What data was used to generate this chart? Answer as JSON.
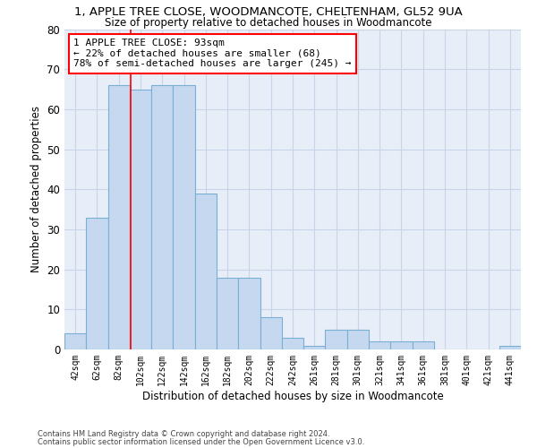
{
  "title1": "1, APPLE TREE CLOSE, WOODMANCOTE, CHELTENHAM, GL52 9UA",
  "title2": "Size of property relative to detached houses in Woodmancote",
  "xlabel": "Distribution of detached houses by size in Woodmancote",
  "ylabel": "Number of detached properties",
  "bins": [
    "42sqm",
    "62sqm",
    "82sqm",
    "102sqm",
    "122sqm",
    "142sqm",
    "162sqm",
    "182sqm",
    "202sqm",
    "222sqm",
    "242sqm",
    "261sqm",
    "281sqm",
    "301sqm",
    "321sqm",
    "341sqm",
    "361sqm",
    "381sqm",
    "401sqm",
    "421sqm",
    "441sqm"
  ],
  "values": [
    4,
    33,
    66,
    65,
    66,
    66,
    39,
    18,
    18,
    8,
    3,
    1,
    5,
    5,
    2,
    2,
    2,
    0,
    0,
    0,
    1
  ],
  "bar_color": "#c5d8f0",
  "bar_edge_color": "#7aafd4",
  "grid_color": "#c8d4e8",
  "background_color": "#e8eef8",
  "annotation_text": "1 APPLE TREE CLOSE: 93sqm\n← 22% of detached houses are smaller (68)\n78% of semi-detached houses are larger (245) →",
  "annotation_box_color": "white",
  "annotation_box_edge": "red",
  "vline_color": "red",
  "ylim": [
    0,
    80
  ],
  "yticks": [
    0,
    10,
    20,
    30,
    40,
    50,
    60,
    70,
    80
  ],
  "footnote1": "Contains HM Land Registry data © Crown copyright and database right 2024.",
  "footnote2": "Contains public sector information licensed under the Open Government Licence v3.0."
}
